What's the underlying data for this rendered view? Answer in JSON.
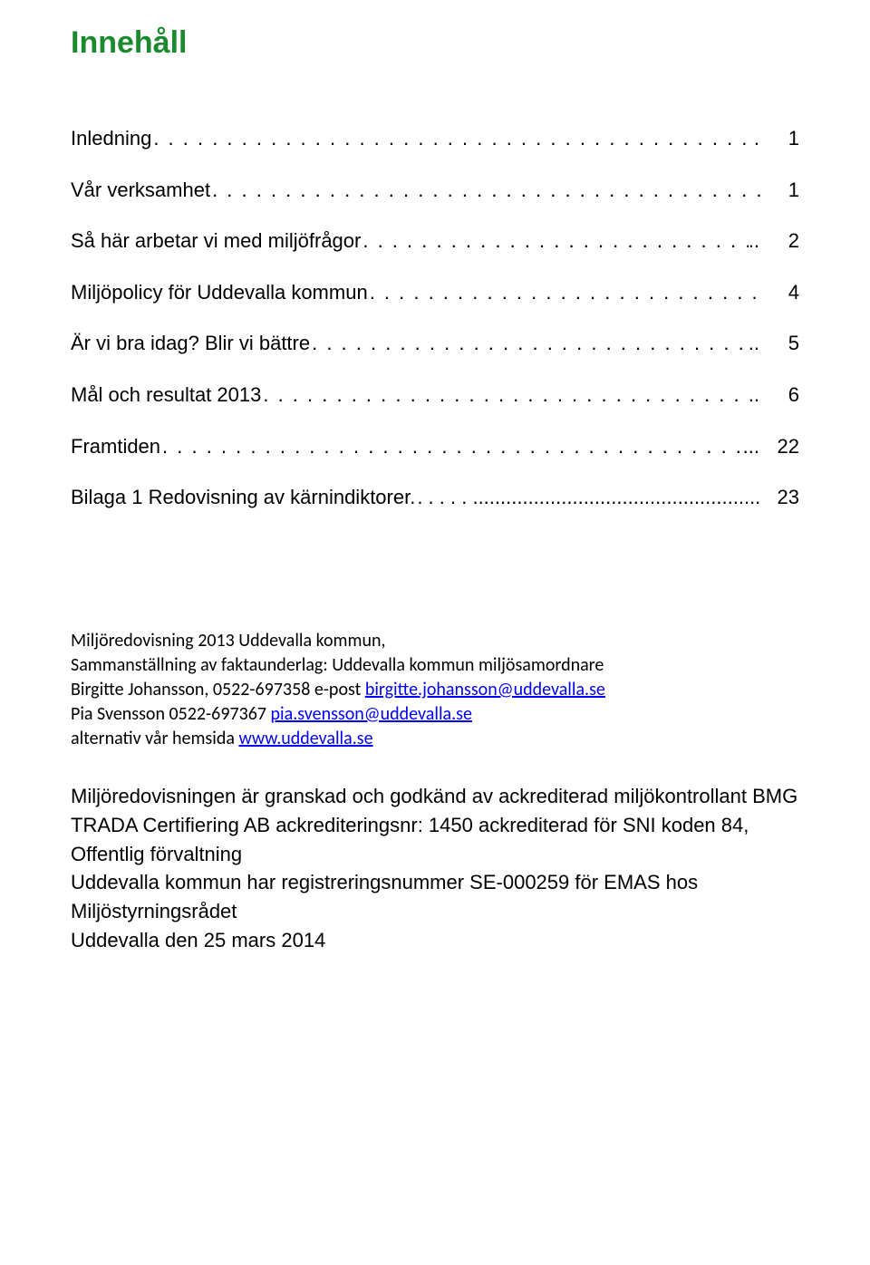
{
  "colors": {
    "title_color": "#1b8a2e",
    "text_color": "#000000",
    "link_color": "#0000ff",
    "background": "#ffffff"
  },
  "title": "Innehåll",
  "title_fontsize": 34,
  "toc_fontsize": 22,
  "toc": [
    {
      "label": "Inledning",
      "suffix": ".",
      "page": "1"
    },
    {
      "label": "Vår verksamhet",
      "suffix": "",
      "page": "1"
    },
    {
      "label": "Så här arbetar vi med miljöfrågor",
      "suffix": "..",
      "page": "2"
    },
    {
      "label": "Miljöpolicy för Uddevalla kommun",
      "suffix": "",
      "page": "4"
    },
    {
      "label": "Är vi bra idag? Blir vi bättre",
      "suffix": "..",
      "page": "5"
    },
    {
      "label": "Mål och resultat 2013",
      "suffix": "..",
      "page": "6"
    },
    {
      "label": "Framtiden",
      "suffix": "...",
      "page": "22"
    },
    {
      "label": "Bilaga 1 Redovisning av kärnindiktorer.",
      "suffix": "",
      "page": "23",
      "solid": true
    }
  ],
  "credits": {
    "line1": "Miljöredovisning 2013 Uddevalla kommun,",
    "line2": "Sammanställning av faktaunderlag: Uddevalla kommun miljösamordnare",
    "line3_pre": "Birgitte Johansson, 0522-697358 e-post ",
    "line3_link": "birgitte.johansson@uddevalla.se",
    "line4_pre": "Pia Svensson 0522-697367 ",
    "line4_link": "pia.svensson@uddevalla.se",
    "line5_pre": "alternativ vår hemsida ",
    "line5_link": "www.uddevalla.se"
  },
  "accreditation": {
    "p1": "Miljöredovisningen är granskad och godkänd av ackrediterad miljökontrollant BMG TRADA Certifiering AB ackrediteringsnr: 1450 ackrediterad för SNI koden 84, Offentlig förvaltning",
    "p2": "Uddevalla kommun har registreringsnummer SE-000259 för EMAS hos Miljöstyrningsrådet",
    "p3": "Uddevalla den 25 mars 2014"
  }
}
